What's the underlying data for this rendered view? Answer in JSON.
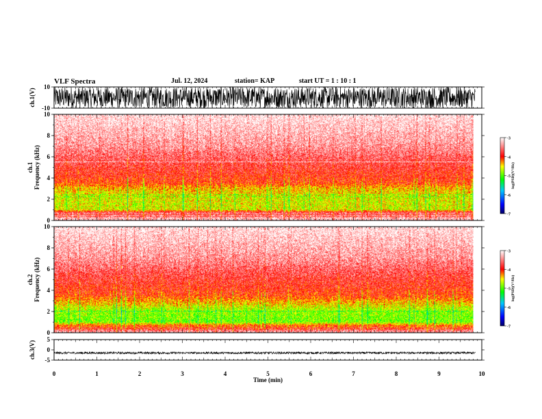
{
  "header": {
    "title": "VLF Spectra",
    "date": "Jul. 12, 2024",
    "station": "station= KAP",
    "start": "start UT = 1 : 10 : 1"
  },
  "colors": {
    "background": "#ffffff",
    "axis": "#000000",
    "colorbar_stops": [
      "#000066",
      "#0000ff",
      "#00c8ff",
      "#00ff00",
      "#ffff00",
      "#ff0000",
      "#ffffff"
    ]
  },
  "chart_data": [
    {
      "type": "line",
      "panel": "waveform-ch1",
      "ylabel": "ch.1(V)",
      "ylim": [
        -10,
        10
      ],
      "yticks": [
        "10",
        "-10"
      ],
      "xlim": [
        0,
        10
      ],
      "color": "#000000",
      "envelope": {
        "mean": 0,
        "amplitude": 10
      }
    },
    {
      "type": "heatmap",
      "panel": "spectrogram-ch1",
      "ylabel": "ch.1 Frequency (kHz)",
      "ylim": [
        0,
        10
      ],
      "yticks": [
        "0",
        "2",
        "4",
        "6",
        "8",
        "10"
      ],
      "xlim": [
        0,
        10
      ],
      "data_end_min": 9.8,
      "zlim": [
        -7,
        -3
      ],
      "zlabel": "log(PSD)(V²/Hz)",
      "colorbar_ticks": [
        "-3",
        "-4",
        "-5",
        "-6",
        "-7"
      ],
      "spectral_profile": [
        {
          "khz": 0.0,
          "log_psd": -3.2
        },
        {
          "khz": 0.7,
          "log_psd": -3.6
        },
        {
          "khz": 1.0,
          "log_psd": -4.6
        },
        {
          "khz": 2.0,
          "log_psd": -4.6
        },
        {
          "khz": 3.0,
          "log_psd": -4.4
        },
        {
          "khz": 3.5,
          "log_psd": -4.0
        },
        {
          "khz": 5.5,
          "log_psd": -3.7
        },
        {
          "khz": 7.0,
          "log_psd": -3.4
        },
        {
          "khz": 10.0,
          "log_psd": -3.05
        }
      ],
      "horizontal_lines_khz": [
        2.2,
        2.4,
        5.5,
        0.5,
        0.3
      ]
    },
    {
      "type": "heatmap",
      "panel": "spectrogram-ch2",
      "ylabel": "ch.2 Frequency (kHz)",
      "ylim": [
        0,
        10
      ],
      "yticks": [
        "0",
        "2",
        "4",
        "6",
        "8",
        "10"
      ],
      "xlim": [
        0,
        10
      ],
      "data_end_min": 9.8,
      "zlim": [
        -7,
        -3
      ],
      "zlabel": "log(PSD)(V²/Hz)",
      "colorbar_ticks": [
        "-3",
        "-4",
        "-5",
        "-6",
        "-7"
      ],
      "spectral_profile": [
        {
          "khz": 0.0,
          "log_psd": -3.3
        },
        {
          "khz": 0.6,
          "log_psd": -4.0
        },
        {
          "khz": 1.0,
          "log_psd": -4.9
        },
        {
          "khz": 2.0,
          "log_psd": -4.8
        },
        {
          "khz": 3.0,
          "log_psd": -4.3
        },
        {
          "khz": 3.5,
          "log_psd": -4.0
        },
        {
          "khz": 5.5,
          "log_psd": -3.7
        },
        {
          "khz": 7.0,
          "log_psd": -3.4
        },
        {
          "khz": 10.0,
          "log_psd": -3.05
        }
      ],
      "horizontal_lines_khz": [
        2.0,
        0.5,
        0.3
      ]
    },
    {
      "type": "line",
      "panel": "waveform-ch3",
      "ylabel": "ch.3(V)",
      "ylim": [
        -5,
        5
      ],
      "yticks": [
        "5",
        "0",
        "-5"
      ],
      "xlim": [
        0,
        10
      ],
      "color": "#000000",
      "envelope": {
        "mean": -1.5,
        "amplitude": 0.5
      }
    }
  ],
  "xaxis": {
    "label": "Time (min)",
    "ticks": [
      "0",
      "1",
      "2",
      "3",
      "4",
      "5",
      "6",
      "7",
      "8",
      "9",
      "10"
    ]
  }
}
